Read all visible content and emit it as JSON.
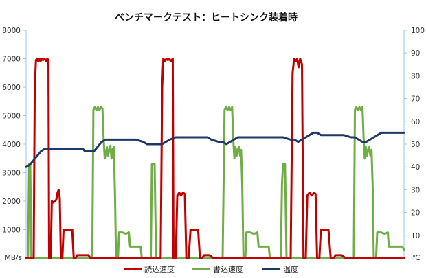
{
  "chart_data": {
    "type": "line",
    "title": "ベンチマークテスト：ヒートシンク装着時",
    "y_left": {
      "unit_label": "MB/s",
      "ylim": [
        0,
        8000
      ],
      "ticks": [
        "1000",
        "2000",
        "3000",
        "4000",
        "5000",
        "6000",
        "7000",
        "8000"
      ]
    },
    "y_right": {
      "unit_label": "℃",
      "ylim": [
        0,
        100
      ],
      "ticks": [
        "10",
        "20",
        "30",
        "40",
        "50",
        "60",
        "70",
        "80",
        "90",
        "100"
      ]
    },
    "grid": false,
    "legend_position": "bottom",
    "colors": {
      "read": "#c00000",
      "write": "#70ad47",
      "temp": "#1f3864",
      "axis": "#9dc3e6"
    },
    "series": [
      {
        "name": "読込速度",
        "key": "read",
        "axis": "left",
        "points": [
          [
            0,
            0
          ],
          [
            2.0,
            0
          ],
          [
            2.3,
            6000
          ],
          [
            2.6,
            6950
          ],
          [
            2.9,
            7000
          ],
          [
            3.2,
            6900
          ],
          [
            3.5,
            7000
          ],
          [
            3.8,
            6900
          ],
          [
            4.1,
            7000
          ],
          [
            4.5,
            6950
          ],
          [
            4.9,
            7000
          ],
          [
            5.3,
            6900
          ],
          [
            5.6,
            7000
          ],
          [
            5.9,
            6950
          ],
          [
            6.1,
            0
          ],
          [
            6.5,
            0
          ],
          [
            6.8,
            2000
          ],
          [
            7.2,
            1950
          ],
          [
            7.6,
            2000
          ],
          [
            8.0,
            2050
          ],
          [
            8.3,
            2300
          ],
          [
            8.6,
            2400
          ],
          [
            8.9,
            2100
          ],
          [
            9.2,
            0
          ],
          [
            9.6,
            0
          ],
          [
            9.9,
            1000
          ],
          [
            10.5,
            1000
          ],
          [
            11.0,
            1000
          ],
          [
            11.6,
            1000
          ],
          [
            12.2,
            1000
          ],
          [
            12.6,
            0
          ],
          [
            13.1,
            0
          ],
          [
            13.5,
            100
          ],
          [
            14.5,
            100
          ],
          [
            15.5,
            100
          ],
          [
            16.5,
            100
          ],
          [
            17.0,
            0
          ],
          [
            35.6,
            0
          ],
          [
            36.0,
            6000
          ],
          [
            36.3,
            7000
          ],
          [
            36.7,
            6900
          ],
          [
            37.1,
            7000
          ],
          [
            37.5,
            6950
          ],
          [
            37.9,
            7000
          ],
          [
            38.3,
            6900
          ],
          [
            38.8,
            7000
          ],
          [
            39.0,
            0
          ],
          [
            39.6,
            0
          ],
          [
            40.0,
            2200
          ],
          [
            40.5,
            2300
          ],
          [
            41.0,
            2200
          ],
          [
            41.5,
            2300
          ],
          [
            42.0,
            2250
          ],
          [
            42.4,
            0
          ],
          [
            43.0,
            0
          ],
          [
            43.5,
            1000
          ],
          [
            44.5,
            1000
          ],
          [
            45.5,
            1000
          ],
          [
            46.0,
            0
          ],
          [
            46.6,
            0
          ],
          [
            47.1,
            100
          ],
          [
            48.5,
            100
          ],
          [
            49.5,
            0
          ],
          [
            70.0,
            0
          ],
          [
            70.5,
            6500
          ],
          [
            70.9,
            7000
          ],
          [
            71.3,
            6900
          ],
          [
            71.7,
            7000
          ],
          [
            72.1,
            6700
          ],
          [
            72.5,
            7000
          ],
          [
            73.0,
            6800
          ],
          [
            73.4,
            0
          ],
          [
            74.0,
            0
          ],
          [
            74.4,
            2200
          ],
          [
            75.0,
            2300
          ],
          [
            75.6,
            2200
          ],
          [
            76.2,
            2300
          ],
          [
            76.6,
            2250
          ],
          [
            77.0,
            0
          ],
          [
            77.6,
            0
          ],
          [
            78.0,
            1000
          ],
          [
            79.0,
            1000
          ],
          [
            80.0,
            1000
          ],
          [
            80.6,
            0
          ],
          [
            81.4,
            0
          ],
          [
            81.9,
            100
          ],
          [
            83.5,
            100
          ],
          [
            84.5,
            0
          ],
          [
            100,
            0
          ]
        ]
      },
      {
        "name": "書込速度",
        "key": "write",
        "axis": "left",
        "points": [
          [
            0,
            0
          ],
          [
            0.5,
            0
          ],
          [
            0.8,
            3300
          ],
          [
            1.1,
            3300
          ],
          [
            1.4,
            0
          ],
          [
            17.0,
            0
          ],
          [
            17.5,
            0
          ],
          [
            17.8,
            5200
          ],
          [
            18.2,
            5300
          ],
          [
            18.6,
            5200
          ],
          [
            19.0,
            5300
          ],
          [
            19.4,
            5200
          ],
          [
            19.8,
            5300
          ],
          [
            20.2,
            5250
          ],
          [
            20.5,
            4200
          ],
          [
            20.8,
            3500
          ],
          [
            21.1,
            3700
          ],
          [
            21.4,
            3900
          ],
          [
            21.7,
            3600
          ],
          [
            22.0,
            3800
          ],
          [
            22.3,
            3950
          ],
          [
            22.6,
            3500
          ],
          [
            22.9,
            3800
          ],
          [
            23.2,
            3900
          ],
          [
            23.5,
            2300
          ],
          [
            23.8,
            0
          ],
          [
            24.3,
            0
          ],
          [
            24.6,
            900
          ],
          [
            25.5,
            900
          ],
          [
            26.4,
            850
          ],
          [
            27.2,
            900
          ],
          [
            27.5,
            400
          ],
          [
            28.5,
            400
          ],
          [
            29.5,
            400
          ],
          [
            30.3,
            400
          ],
          [
            30.6,
            0
          ],
          [
            33.0,
            0
          ],
          [
            33.3,
            3300
          ],
          [
            34.0,
            3300
          ],
          [
            34.4,
            0
          ],
          [
            52.0,
            0
          ],
          [
            52.5,
            5200
          ],
          [
            52.9,
            5300
          ],
          [
            53.3,
            5200
          ],
          [
            53.7,
            5300
          ],
          [
            54.1,
            5200
          ],
          [
            54.5,
            5300
          ],
          [
            54.8,
            4200
          ],
          [
            55.1,
            3500
          ],
          [
            55.4,
            3900
          ],
          [
            55.7,
            3600
          ],
          [
            56.0,
            3800
          ],
          [
            56.3,
            3900
          ],
          [
            56.6,
            3600
          ],
          [
            56.9,
            3800
          ],
          [
            57.2,
            2500
          ],
          [
            57.5,
            0
          ],
          [
            58.0,
            0
          ],
          [
            58.3,
            900
          ],
          [
            59.3,
            900
          ],
          [
            60.3,
            850
          ],
          [
            61.2,
            900
          ],
          [
            61.5,
            400
          ],
          [
            62.5,
            400
          ],
          [
            63.5,
            400
          ],
          [
            64.2,
            400
          ],
          [
            64.5,
            0
          ],
          [
            67.4,
            0
          ],
          [
            67.7,
            2600
          ],
          [
            68.0,
            3300
          ],
          [
            68.5,
            3300
          ],
          [
            68.9,
            0
          ],
          [
            86.7,
            0
          ],
          [
            87.0,
            5200
          ],
          [
            87.4,
            5300
          ],
          [
            87.8,
            5200
          ],
          [
            88.2,
            5300
          ],
          [
            88.6,
            5200
          ],
          [
            89.0,
            5300
          ],
          [
            89.3,
            4200
          ],
          [
            89.6,
            3500
          ],
          [
            89.9,
            3900
          ],
          [
            90.2,
            3600
          ],
          [
            90.5,
            3800
          ],
          [
            90.8,
            3900
          ],
          [
            91.1,
            3600
          ],
          [
            91.4,
            3800
          ],
          [
            91.7,
            2500
          ],
          [
            92.0,
            0
          ],
          [
            92.6,
            0
          ],
          [
            92.9,
            900
          ],
          [
            93.9,
            900
          ],
          [
            94.9,
            850
          ],
          [
            95.7,
            900
          ],
          [
            96.0,
            400
          ],
          [
            97.0,
            400
          ],
          [
            98.0,
            400
          ],
          [
            99.5,
            400
          ],
          [
            100,
            300
          ]
        ]
      },
      {
        "name": "温度",
        "key": "temp",
        "axis": "right",
        "points": [
          [
            0,
            40
          ],
          [
            1,
            41
          ],
          [
            2,
            43
          ],
          [
            3,
            45
          ],
          [
            4,
            47
          ],
          [
            5,
            48
          ],
          [
            6,
            48
          ],
          [
            8,
            48
          ],
          [
            10,
            48
          ],
          [
            12,
            48
          ],
          [
            14,
            48
          ],
          [
            15,
            48
          ],
          [
            15.5,
            47
          ],
          [
            17,
            47
          ],
          [
            18,
            47
          ],
          [
            19,
            49
          ],
          [
            20,
            51
          ],
          [
            21,
            52
          ],
          [
            23,
            52
          ],
          [
            25,
            52
          ],
          [
            27,
            52
          ],
          [
            29,
            52
          ],
          [
            31,
            51
          ],
          [
            32,
            50
          ],
          [
            34,
            50
          ],
          [
            36,
            50
          ],
          [
            37,
            51
          ],
          [
            38,
            52
          ],
          [
            39.5,
            53
          ],
          [
            41,
            53
          ],
          [
            42,
            53
          ],
          [
            44,
            53
          ],
          [
            46,
            53
          ],
          [
            48,
            53
          ],
          [
            49,
            52
          ],
          [
            51,
            51
          ],
          [
            52,
            51
          ],
          [
            53,
            50
          ],
          [
            54,
            51
          ],
          [
            55,
            52
          ],
          [
            56,
            53
          ],
          [
            58,
            53
          ],
          [
            60,
            53
          ],
          [
            62,
            53
          ],
          [
            64,
            53
          ],
          [
            66,
            53
          ],
          [
            68,
            53
          ],
          [
            70,
            52
          ],
          [
            71,
            52
          ],
          [
            72,
            51
          ],
          [
            73,
            52
          ],
          [
            74,
            53
          ],
          [
            75,
            54
          ],
          [
            76,
            55
          ],
          [
            77,
            55
          ],
          [
            78,
            54
          ],
          [
            80,
            54
          ],
          [
            82,
            54
          ],
          [
            84,
            54
          ],
          [
            86,
            53
          ],
          [
            87,
            53
          ],
          [
            88,
            52
          ],
          [
            89,
            51
          ],
          [
            90,
            51
          ],
          [
            91,
            52
          ],
          [
            92,
            53
          ],
          [
            93,
            54
          ],
          [
            94,
            55
          ],
          [
            96,
            55
          ],
          [
            98,
            55
          ],
          [
            100,
            55
          ]
        ]
      }
    ]
  }
}
